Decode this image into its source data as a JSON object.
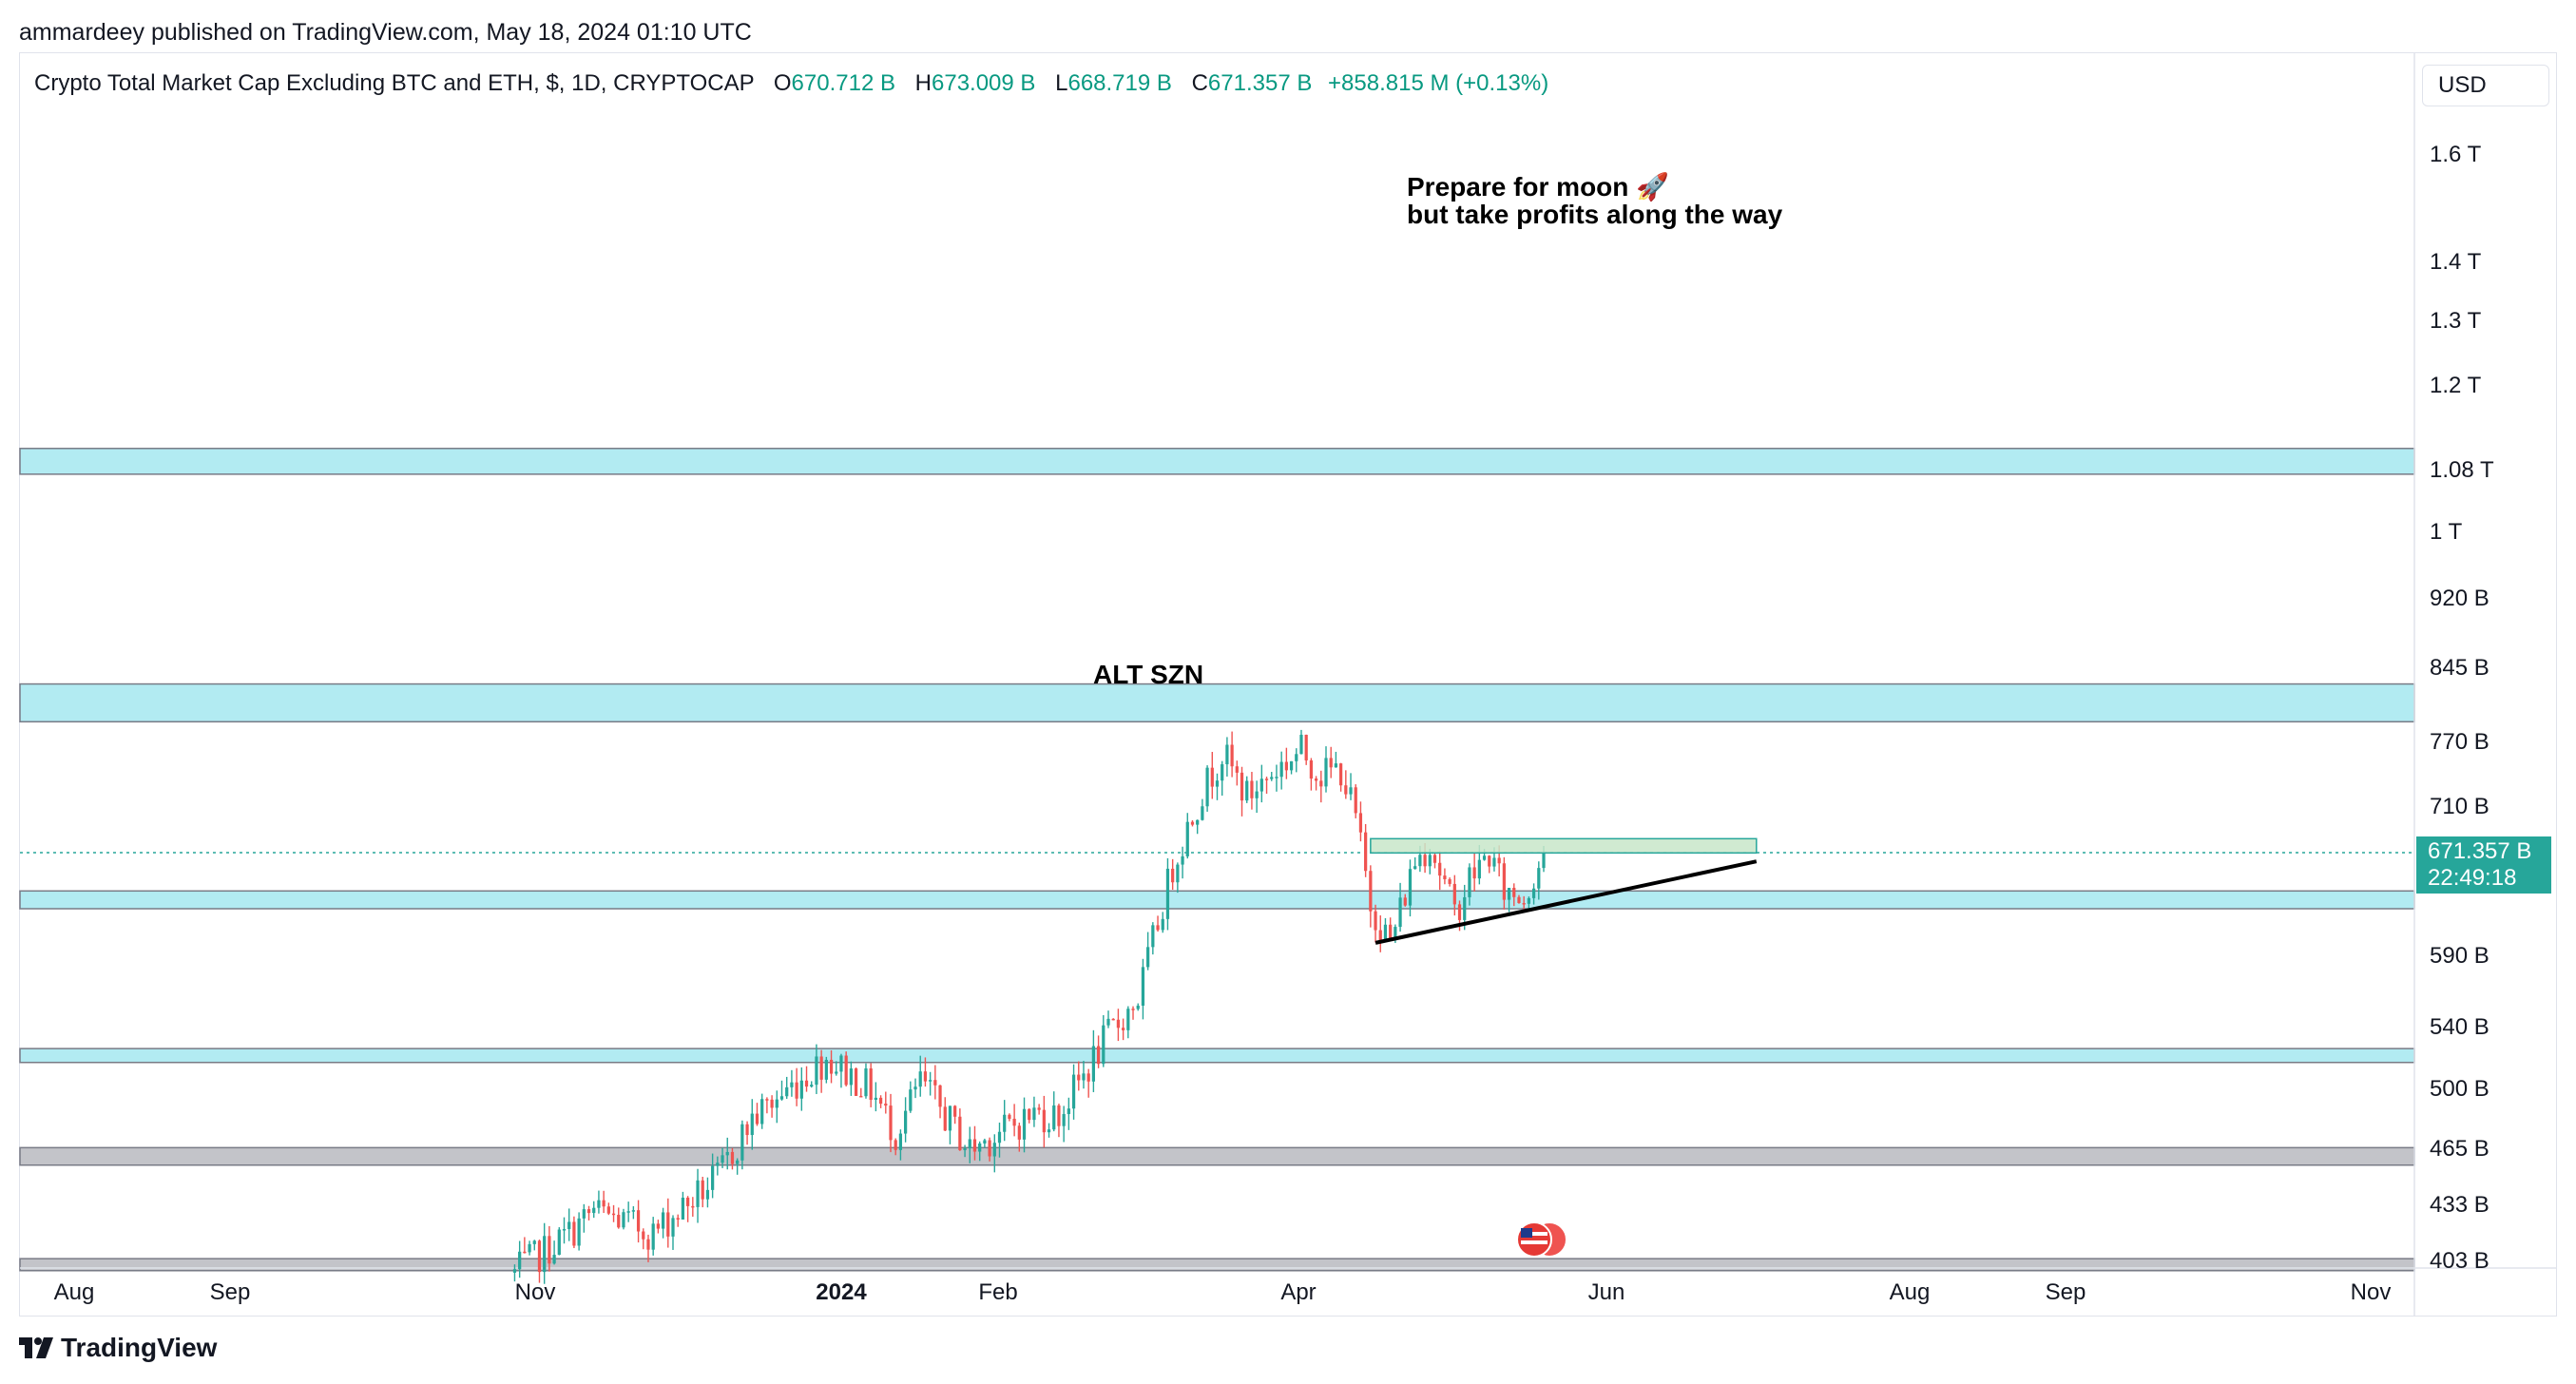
{
  "publisher": "ammardeey published on TradingView.com, May 18, 2024 01:10 UTC",
  "legend": {
    "title": "Crypto Total Market Cap Excluding BTC and ETH, $, 1D, CRYPTOCAP",
    "open_label": "O",
    "open": "670.712 B",
    "high_label": "H",
    "high": "673.009 B",
    "low_label": "L",
    "low": "668.719 B",
    "close_label": "C",
    "close": "671.357 B",
    "change": "+858.815 M (+0.13%)"
  },
  "currency": "USD",
  "y_axis": [
    "1.6 T",
    "1.4 T",
    "1.3 T",
    "1.2 T",
    "1.08 T",
    "1 T",
    "920 B",
    "845 B",
    "770 B",
    "710 B",
    "590 B",
    "540 B",
    "500 B",
    "465 B",
    "433 B",
    "403 B"
  ],
  "x_axis": [
    "Aug",
    "Sep",
    "Nov",
    "2024",
    "Feb",
    "Apr",
    "Jun",
    "Aug",
    "Sep",
    "Nov"
  ],
  "price_tag": {
    "price": "671.357 B",
    "countdown": "22:49:18"
  },
  "annotations": {
    "alt_szn": "ALT SZN",
    "moon_line1": "Prepare for moon 🚀",
    "moon_line2": "but take profits along the way"
  },
  "brand": "TradingView",
  "colors": {
    "up": "#26a69a",
    "down": "#ef5350",
    "zone": "#b2ebf2",
    "zone_gray": "#c3c4c9",
    "box": "#c8e6c9"
  },
  "chart_data": {
    "type": "candlestick",
    "title": "Crypto Total Market Cap Excluding BTC and ETH, $, 1D, CRYPTOCAP",
    "x_range": [
      "2023-07-15",
      "2024-11-10"
    ],
    "y_range_B": [
      398,
      1780
    ],
    "y_scale": "log",
    "y_ticks": [
      "1.6 T",
      "1.4 T",
      "1.3 T",
      "1.2 T",
      "1.08 T",
      "1 T",
      "920 B",
      "845 B",
      "770 B",
      "710 B",
      "590 B",
      "540 B",
      "500 B",
      "465 B",
      "433 B",
      "403 B"
    ],
    "last_price_B": 671.357,
    "anchors_B": [
      [
        "2023-10-23",
        398
      ],
      [
        "2023-11-03",
        418
      ],
      [
        "2023-11-08",
        430
      ],
      [
        "2023-11-20",
        418
      ],
      [
        "2023-12-03",
        448
      ],
      [
        "2023-12-10",
        482
      ],
      [
        "2023-12-25",
        520
      ],
      [
        "2024-01-03",
        500
      ],
      [
        "2024-01-08",
        473
      ],
      [
        "2024-01-13",
        505
      ],
      [
        "2024-01-23",
        464
      ],
      [
        "2024-02-05",
        485
      ],
      [
        "2024-02-10",
        484
      ],
      [
        "2024-02-20",
        535
      ],
      [
        "2024-02-26",
        560
      ],
      [
        "2024-03-04",
        660
      ],
      [
        "2024-03-09",
        715
      ],
      [
        "2024-03-14",
        760
      ],
      [
        "2024-03-19",
        720
      ],
      [
        "2024-03-25",
        745
      ],
      [
        "2024-03-30",
        762
      ],
      [
        "2024-04-03",
        740
      ],
      [
        "2024-04-07",
        745
      ],
      [
        "2024-04-10",
        700
      ],
      [
        "2024-04-13",
        630
      ],
      [
        "2024-04-17",
        600
      ],
      [
        "2024-04-22",
        665
      ],
      [
        "2024-04-25",
        680
      ],
      [
        "2024-04-30",
        622
      ],
      [
        "2024-05-03",
        650
      ],
      [
        "2024-05-07",
        670
      ],
      [
        "2024-05-10",
        640
      ],
      [
        "2024-05-14",
        635
      ],
      [
        "2024-05-18",
        671.357
      ]
    ],
    "zones_B": [
      [
        1075,
        1110
      ],
      [
        790,
        828
      ],
      [
        626,
        640
      ],
      [
        517,
        526
      ],
      [
        455,
        465
      ],
      [
        399,
        405
      ]
    ],
    "box_B": {
      "from": "2024-04-13",
      "to": "2024-06-30",
      "low": 671,
      "high": 683
    },
    "trendline_B": [
      [
        "2024-04-14",
        600
      ],
      [
        "2024-06-30",
        664
      ]
    ]
  }
}
